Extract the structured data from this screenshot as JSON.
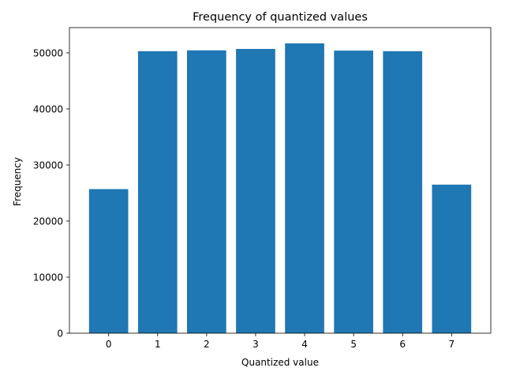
{
  "chart_data": {
    "type": "bar",
    "title": "Frequency of quantized values",
    "xlabel": "Quantized value",
    "ylabel": "Frequency",
    "categories": [
      "0",
      "1",
      "2",
      "3",
      "4",
      "5",
      "6",
      "7"
    ],
    "values": [
      25700,
      50300,
      50450,
      50700,
      51700,
      50400,
      50300,
      26500
    ],
    "ylim": [
      0,
      54500
    ],
    "yticks": [
      0,
      10000,
      20000,
      30000,
      40000,
      50000
    ],
    "grid": false,
    "bar_color": "#1f77b4"
  }
}
